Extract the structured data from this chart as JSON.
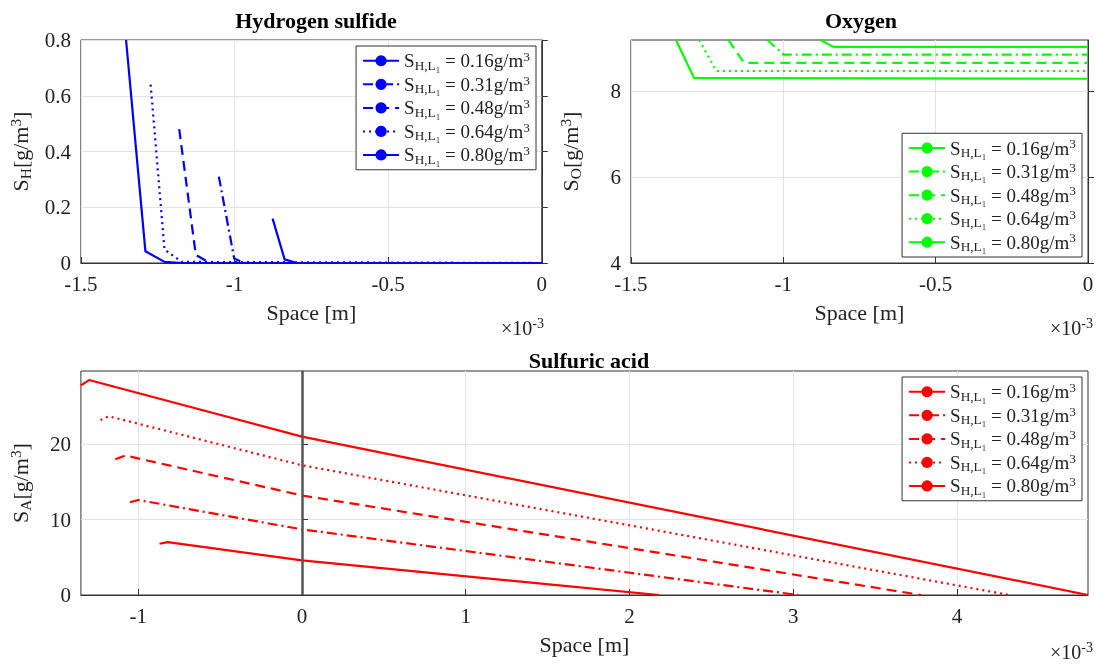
{
  "chart_data": [
    {
      "type": "line",
      "title": "Hydrogen sulfide",
      "xlabel": "Space [m]",
      "ylabel": "S$_{H}$[g/m$^{3}$]",
      "annotations": [
        "×10$^{-3}$"
      ],
      "xlim": [
        -1.5,
        0
      ],
      "xticks": [
        -1.5,
        -1,
        -0.5,
        0
      ],
      "ylim": [
        0,
        0.8
      ],
      "yticks": [
        0,
        0.2,
        0.4,
        0.6,
        0.8
      ],
      "grid": true,
      "legend": "top right",
      "marker": "none",
      "series": [
        {
          "name": "S$_{H,L₁}$ = 0.16g/m$^{3}$",
          "color": "#0000ff",
          "line_style": "solid",
          "x": [
            -0.876,
            -0.837,
            -0.797,
            0
          ],
          "values": [
            0.159,
            0.013,
            0,
            0
          ]
        },
        {
          "name": "S$_{H,L₁}$ = 0.31g/m$^{3}$",
          "color": "#0000ff",
          "line_style": "dashdot",
          "x": [
            -1.051,
            -1.001,
            -0.967,
            0
          ],
          "values": [
            0.31,
            0.016,
            0,
            0
          ]
        },
        {
          "name": "S$_{H,L₁}$ = 0.48g/m$^{3}$",
          "color": "#0000ff",
          "line_style": "dashed",
          "x": [
            -1.18,
            -1.126,
            -1.08,
            0
          ],
          "values": [
            0.48,
            0.029,
            0,
            0
          ]
        },
        {
          "name": "S$_{H,L₁}$ = 0.64g/m$^{3}$",
          "color": "#0000ff",
          "line_style": "dotted",
          "x": [
            -1.273,
            -1.228,
            -1.171,
            0
          ],
          "values": [
            0.64,
            0.048,
            0.004,
            0
          ]
        },
        {
          "name": "S$_{H,L₁}$ = 0.80g/m$^{3}$",
          "color": "#0000ff",
          "line_style": "solid",
          "x": [
            -1.353,
            -1.29,
            -1.228,
            -1.17,
            0
          ],
          "values": [
            0.8,
            0.042,
            0.004,
            0,
            0
          ]
        }
      ]
    },
    {
      "type": "line",
      "title": "Oxygen",
      "xlabel": "Space [m]",
      "ylabel": "S$_{O}$[g/m$^{3}$]",
      "annotations": [
        "×10$^{-3}$"
      ],
      "xlim": [
        -1.5,
        0
      ],
      "xticks": [
        -1.5,
        -1,
        -0.5,
        0
      ],
      "ylim": [
        4,
        9.18
      ],
      "yticks": [
        4,
        6,
        8
      ],
      "grid": true,
      "legend": "bottom right",
      "marker": "none",
      "series": [
        {
          "name": "S$_{H,L₁}$ = 0.16g/m$^{3}$",
          "color": "#00ff00",
          "line_style": "solid",
          "x": [
            -0.878,
            -0.835,
            0
          ],
          "values": [
            9.18,
            9.02,
            9.02
          ]
        },
        {
          "name": "S$_{H,L₁}$ = 0.31g/m$^{3}$",
          "color": "#00ff00",
          "line_style": "dashdot",
          "x": [
            -1.052,
            -0.999,
            0
          ],
          "values": [
            9.18,
            8.84,
            8.84
          ]
        },
        {
          "name": "S$_{H,L₁}$ = 0.48g/m$^{3}$",
          "color": "#00ff00",
          "line_style": "dashed",
          "x": [
            -1.18,
            -1.129,
            0
          ],
          "values": [
            9.18,
            8.65,
            8.65
          ]
        },
        {
          "name": "S$_{H,L₁}$ = 0.64g/m$^{3}$",
          "color": "#00ff00",
          "line_style": "dotted",
          "x": [
            -1.276,
            -1.219,
            0
          ],
          "values": [
            9.18,
            8.46,
            8.46
          ]
        },
        {
          "name": "S$_{H,L₁}$ = 0.80g/m$^{3}$",
          "color": "#00ff00",
          "line_style": "solid",
          "x": [
            -1.352,
            -1.293,
            0
          ],
          "values": [
            9.18,
            8.3,
            8.28
          ]
        }
      ]
    },
    {
      "type": "line",
      "title": "Sulfuric acid",
      "xlabel": "Space [m]",
      "ylabel": "S$_{A}$[g/m$^{3}$]",
      "annotations": [
        "×10$^{-3}$"
      ],
      "xlim": [
        -1.35,
        4.8
      ],
      "xticks": [
        -1,
        0,
        1,
        2,
        3,
        4
      ],
      "ylim": [
        0,
        29.7
      ],
      "yticks": [
        0,
        10,
        20
      ],
      "grid": true,
      "legend": "top right",
      "marker": "none",
      "ref_lines": [
        {
          "axis": "x",
          "value": 0,
          "color": "#555555",
          "line_style": "solid"
        }
      ],
      "series": [
        {
          "name": "S$_{H,L₁}$ = 0.16g/m$^{3}$",
          "color": "#ff0000",
          "line_style": "solid",
          "x": [
            -0.87,
            -0.82,
            0,
            2.18
          ],
          "values": [
            6.8,
            7.0,
            4.6,
            0
          ]
        },
        {
          "name": "S$_{H,L₁}$ = 0.31g/m$^{3}$",
          "color": "#ff0000",
          "line_style": "dashdot",
          "x": [
            -1.05,
            -1.0,
            0,
            3.03
          ],
          "values": [
            12.3,
            12.6,
            8.7,
            0
          ]
        },
        {
          "name": "S$_{H,L₁}$ = 0.48g/m$^{3}$",
          "color": "#ff0000",
          "line_style": "dashed",
          "x": [
            -1.14,
            -1.08,
            0,
            3.78
          ],
          "values": [
            18.0,
            18.5,
            13.2,
            0
          ]
        },
        {
          "name": "S$_{H,L₁}$ = 0.64g/m$^{3}$",
          "color": "#ff0000",
          "line_style": "dotted",
          "x": [
            -1.23,
            -1.18,
            0,
            4.32
          ],
          "values": [
            23.2,
            23.7,
            17.2,
            0
          ]
        },
        {
          "name": "S$_{H,L₁}$ = 0.80g/m$^{3}$",
          "color": "#ff0000",
          "line_style": "solid",
          "x": [
            -1.35,
            -1.3,
            0,
            4.8
          ],
          "values": [
            27.8,
            28.5,
            21,
            0
          ]
        }
      ]
    }
  ]
}
